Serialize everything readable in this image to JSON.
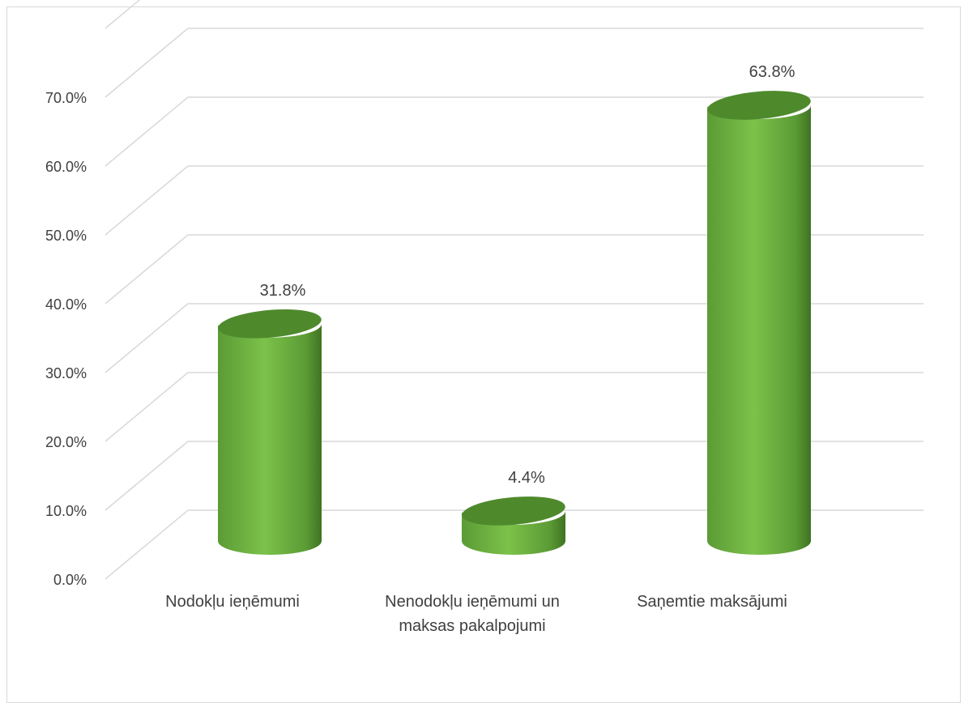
{
  "chart_data": {
    "type": "bar",
    "style": "3d-cylinder",
    "categories": [
      [
        "Nodokļu ieņēmumi"
      ],
      [
        "Nenodokļu ieņēmumi un",
        "maksas pakalpojumi"
      ],
      [
        "Saņemtie maksājumi"
      ]
    ],
    "series": [
      {
        "values": [
          31.8,
          4.4,
          63.8
        ]
      }
    ],
    "data_labels": [
      "31.8%",
      "4.4%",
      "63.8%"
    ],
    "y_ticks": [
      "0.0%",
      "10.0%",
      "20.0%",
      "30.0%",
      "40.0%",
      "50.0%",
      "60.0%",
      "70.0%"
    ],
    "ylim": [
      0,
      70
    ],
    "grid": true,
    "legend": "none",
    "colors": {
      "bar_light": "#7cc24a",
      "bar_mid": "#5b9b35",
      "bar_dark": "#3f7321",
      "top_face": "#4e8a2c",
      "gridline": "#d9d9d9",
      "text": "#404040"
    }
  }
}
